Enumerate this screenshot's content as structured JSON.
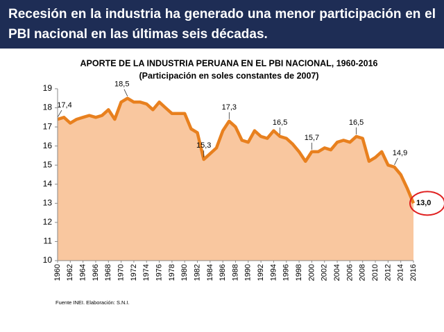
{
  "header": {
    "title": "Recesión en la industria ha generado una menor participación en el PBI nacional en las últimas seis décadas."
  },
  "chart_data": {
    "type": "area",
    "title": "APORTE DE LA INDUSTRIA PERUANA EN EL PBI NACIONAL, 1960-2016",
    "subtitle": "(Participación en soles constantes de 2007)",
    "source": "Fuente INEI. Elaboración: S.N.I.",
    "x": [
      1960,
      1961,
      1962,
      1963,
      1964,
      1965,
      1966,
      1967,
      1968,
      1969,
      1970,
      1971,
      1972,
      1973,
      1974,
      1975,
      1976,
      1977,
      1978,
      1979,
      1980,
      1981,
      1982,
      1983,
      1984,
      1985,
      1986,
      1987,
      1988,
      1989,
      1990,
      1991,
      1992,
      1993,
      1994,
      1995,
      1996,
      1997,
      1998,
      1999,
      2000,
      2001,
      2002,
      2003,
      2004,
      2005,
      2006,
      2007,
      2008,
      2009,
      2010,
      2011,
      2012,
      2013,
      2014,
      2015,
      2016
    ],
    "series": [
      {
        "color": "#e8801e",
        "fill": "#f9c79f",
        "values": [
          17.4,
          17.5,
          17.2,
          17.4,
          17.5,
          17.6,
          17.5,
          17.6,
          17.9,
          17.4,
          18.3,
          18.5,
          18.3,
          18.3,
          18.2,
          17.9,
          18.3,
          18.0,
          17.7,
          17.7,
          17.7,
          16.9,
          16.7,
          15.3,
          15.6,
          15.9,
          16.8,
          17.3,
          17.0,
          16.3,
          16.2,
          16.8,
          16.5,
          16.4,
          16.8,
          16.5,
          16.4,
          16.1,
          15.7,
          15.2,
          15.7,
          15.7,
          15.9,
          15.8,
          16.2,
          16.3,
          16.2,
          16.5,
          16.4,
          15.2,
          15.4,
          15.7,
          15.0,
          14.9,
          14.5,
          13.8,
          13.0
        ],
        "value_labels": [
          "17,4",
          null,
          null,
          null,
          null,
          null,
          null,
          null,
          null,
          null,
          null,
          "18,5",
          null,
          null,
          null,
          null,
          null,
          null,
          null,
          null,
          null,
          null,
          null,
          "15,3",
          null,
          null,
          null,
          "17,3",
          null,
          null,
          null,
          null,
          null,
          null,
          null,
          "16,5",
          null,
          null,
          null,
          null,
          "15,7",
          null,
          null,
          null,
          null,
          null,
          null,
          "16,5",
          null,
          null,
          null,
          null,
          null,
          "14,9",
          null,
          null,
          "13,0"
        ]
      }
    ],
    "xlim": [
      1960,
      2016
    ],
    "xticks": [
      1960,
      1962,
      1964,
      1966,
      1968,
      1970,
      1972,
      1974,
      1976,
      1978,
      1980,
      1982,
      1984,
      1986,
      1988,
      1990,
      1992,
      1994,
      1996,
      1998,
      2000,
      2002,
      2004,
      2006,
      2008,
      2010,
      2012,
      2014,
      2016
    ],
    "ylim": [
      10,
      19
    ],
    "yticks": [
      10,
      11,
      12,
      13,
      14,
      15,
      16,
      17,
      18,
      19
    ],
    "highlight_color": "#e02020"
  }
}
